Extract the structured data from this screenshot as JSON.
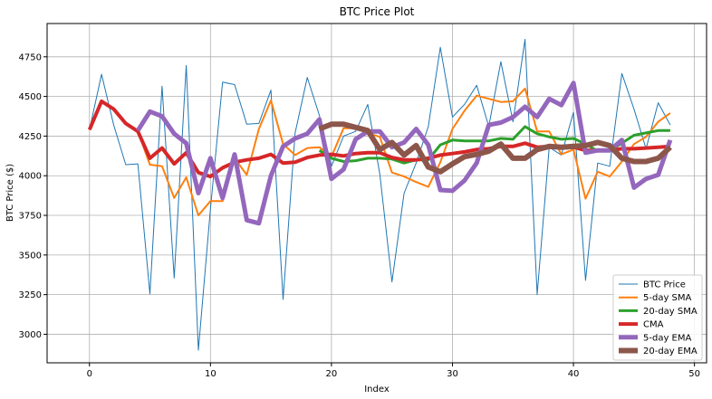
{
  "chart_data": {
    "type": "line",
    "title": "BTC Price Plot",
    "xlabel": "Index",
    "ylabel": "BTC Price ($)",
    "xlim": [
      -3.5,
      51
    ],
    "ylim": [
      2820,
      4960
    ],
    "xticks": [
      0,
      10,
      20,
      30,
      40,
      50
    ],
    "yticks": [
      3000,
      3250,
      3500,
      3750,
      4000,
      4250,
      4500,
      4750
    ],
    "grid": true,
    "legend_position": "bottom-right",
    "series": [
      {
        "name": "BTC Price",
        "color": "#1f77b4",
        "width": 1,
        "x": [
          0,
          1,
          2,
          3,
          4,
          5,
          6,
          7,
          8,
          9,
          10,
          11,
          12,
          13,
          14,
          15,
          16,
          17,
          18,
          19,
          20,
          21,
          22,
          23,
          24,
          25,
          26,
          27,
          28,
          29,
          30,
          31,
          32,
          33,
          34,
          35,
          36,
          37,
          38,
          39,
          40,
          41,
          42,
          43,
          44,
          45,
          46,
          47,
          48
        ],
        "y": [
          4290,
          4640,
          4320,
          4070,
          4075,
          3255,
          4565,
          3355,
          4695,
          2900,
          3790,
          4590,
          4575,
          4325,
          4330,
          4540,
          3220,
          4270,
          4620,
          4380,
          4060,
          4250,
          4280,
          4450,
          4010,
          3330,
          3890,
          4080,
          4310,
          4810,
          4370,
          4450,
          4570,
          4310,
          4720,
          4340,
          4860,
          3250,
          4180,
          4130,
          4400,
          3340,
          4080,
          4060,
          4645,
          4420,
          4170,
          4460,
          4320
        ]
      },
      {
        "name": "5-day SMA",
        "color": "#ff7f0e",
        "width": 2,
        "x": [
          4,
          5,
          6,
          7,
          8,
          9,
          10,
          11,
          12,
          13,
          14,
          15,
          16,
          17,
          18,
          19,
          20,
          21,
          22,
          23,
          24,
          25,
          26,
          27,
          28,
          29,
          30,
          31,
          32,
          33,
          34,
          35,
          36,
          37,
          38,
          39,
          40,
          41,
          42,
          43,
          44,
          45,
          46,
          47,
          48
        ],
        "y": [
          4280,
          4070,
          4060,
          3860,
          3990,
          3750,
          3840,
          3840,
          4110,
          4005,
          4295,
          4475,
          4200,
          4130,
          4175,
          4180,
          4120,
          4300,
          4300,
          4270,
          4245,
          4020,
          3995,
          3960,
          3930,
          4085,
          4295,
          4410,
          4505,
          4485,
          4465,
          4470,
          4550,
          4280,
          4280,
          4135,
          4165,
          3855,
          4025,
          3995,
          4090,
          4200,
          4245,
          4340,
          4395
        ]
      },
      {
        "name": "20-day SMA",
        "color": "#2ca02c",
        "width": 3,
        "x": [
          19,
          20,
          21,
          22,
          23,
          24,
          25,
          26,
          27,
          28,
          29,
          30,
          31,
          32,
          33,
          34,
          35,
          36,
          37,
          38,
          39,
          40,
          41,
          42,
          43,
          44,
          45,
          46,
          47,
          48
        ],
        "y": [
          4160,
          4110,
          4090,
          4095,
          4110,
          4110,
          4105,
          4080,
          4100,
          4100,
          4195,
          4225,
          4220,
          4220,
          4220,
          4235,
          4230,
          4310,
          4265,
          4245,
          4230,
          4235,
          4200,
          4155,
          4160,
          4205,
          4255,
          4270,
          4285,
          4285
        ]
      },
      {
        "name": "CMA",
        "color": "#d62728",
        "width": 4,
        "x": [
          0,
          1,
          2,
          3,
          4,
          5,
          6,
          7,
          8,
          9,
          10,
          11,
          12,
          13,
          14,
          15,
          16,
          17,
          18,
          19,
          20,
          21,
          22,
          23,
          24,
          25,
          26,
          27,
          28,
          29,
          30,
          31,
          32,
          33,
          34,
          35,
          36,
          37,
          38,
          39,
          40,
          41,
          42,
          43,
          44,
          45,
          46,
          47,
          48
        ],
        "y": [
          4290,
          4470,
          4420,
          4330,
          4280,
          4110,
          4175,
          4075,
          4145,
          4020,
          3995,
          4050,
          4085,
          4100,
          4110,
          4135,
          4080,
          4085,
          4115,
          4130,
          4135,
          4125,
          4140,
          4145,
          4145,
          4115,
          4100,
          4100,
          4110,
          4130,
          4140,
          4150,
          4165,
          4170,
          4185,
          4185,
          4205,
          4180,
          4185,
          4175,
          4180,
          4160,
          4160,
          4160,
          4170,
          4170,
          4175,
          4180,
          4185
        ]
      },
      {
        "name": "5-day EMA",
        "color": "#9467bd",
        "width": 5,
        "x": [
          4,
          5,
          6,
          7,
          8,
          9,
          10,
          11,
          12,
          13,
          14,
          15,
          16,
          17,
          18,
          19,
          20,
          21,
          22,
          23,
          24,
          25,
          26,
          27,
          28,
          29,
          30,
          31,
          32,
          33,
          34,
          35,
          36,
          37,
          38,
          39,
          40,
          41,
          42,
          43,
          44,
          45,
          46,
          47,
          48
        ],
        "y": [
          4285,
          4405,
          4375,
          4265,
          4205,
          3890,
          4110,
          3860,
          4135,
          3720,
          3700,
          4000,
          4185,
          4235,
          4265,
          4355,
          3980,
          4040,
          4230,
          4280,
          4280,
          4180,
          4210,
          4295,
          4195,
          3910,
          3905,
          3970,
          4080,
          4320,
          4335,
          4370,
          4435,
          4370,
          4485,
          4445,
          4585,
          4145,
          4160,
          4160,
          4225,
          3925,
          3980,
          4005,
          4225
        ]
      },
      {
        "name": "20-day EMA",
        "color": "#8c564b",
        "width": 6,
        "x": [
          19,
          20,
          21,
          22,
          23,
          24,
          25,
          26,
          27,
          28,
          29,
          30,
          31,
          32,
          33,
          34,
          35,
          36,
          37,
          38,
          39,
          40,
          41,
          42,
          43,
          44,
          45,
          46,
          47,
          48
        ],
        "y": [
          4295,
          4325,
          4325,
          4305,
          4285,
          4165,
          4210,
          4130,
          4190,
          4055,
          4025,
          4075,
          4120,
          4135,
          4155,
          4200,
          4110,
          4110,
          4165,
          4185,
          4180,
          4185,
          4190,
          4210,
          4190,
          4110,
          4090,
          4090,
          4110,
          4180
        ]
      }
    ]
  }
}
